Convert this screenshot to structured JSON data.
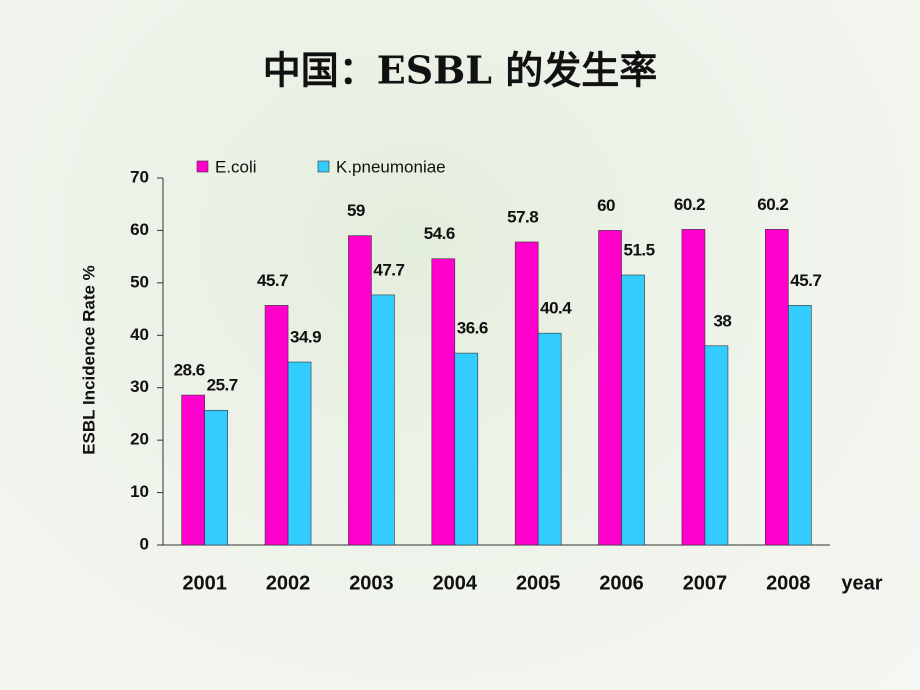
{
  "chart_data": {
    "type": "bar",
    "title": "中国：ESBL 的发生率",
    "x_label": "year",
    "y_label": "ESBL Incidence Rate %",
    "categories": [
      "2001",
      "2002",
      "2003",
      "2004",
      "2005",
      "2006",
      "2007",
      "2008"
    ],
    "series": [
      {
        "name": "E.coli",
        "color": "#ff00cc",
        "values": [
          28.6,
          45.7,
          59,
          54.6,
          57.8,
          60,
          60.2,
          60.2
        ]
      },
      {
        "name": "K.pneumoniae",
        "color": "#33ccff",
        "values": [
          25.7,
          34.9,
          47.7,
          36.6,
          40.4,
          51.5,
          38,
          45.7
        ]
      }
    ],
    "ylim": [
      0,
      70
    ],
    "yticks": [
      0,
      10,
      20,
      30,
      40,
      50,
      60,
      70
    ],
    "legend": "top"
  }
}
